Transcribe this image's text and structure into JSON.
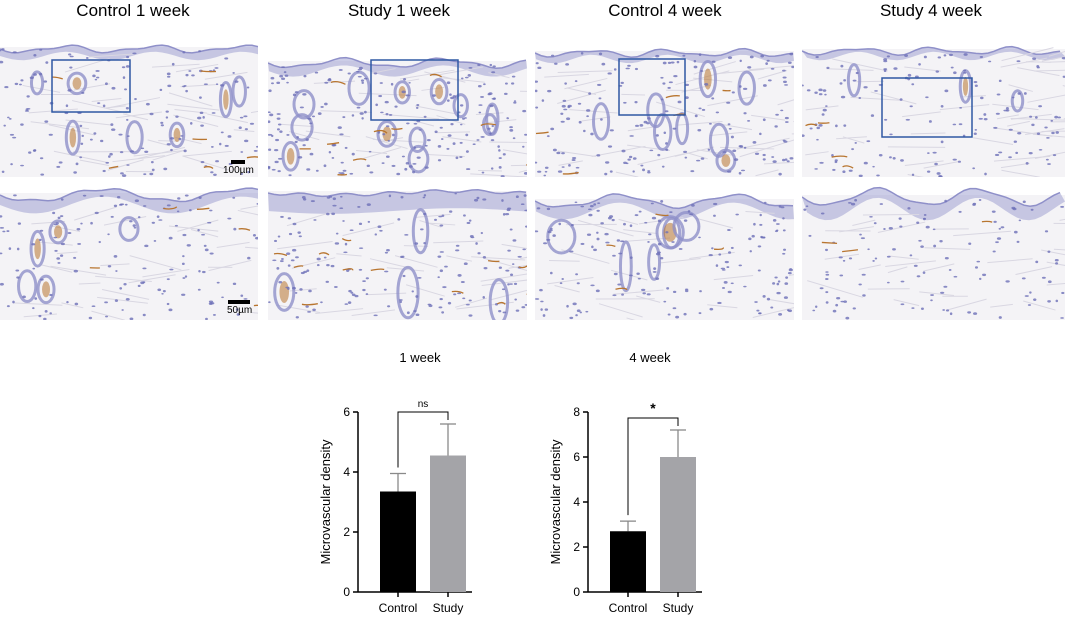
{
  "columns": [
    "Control 1 week",
    "Study 1 week",
    "Control 4 week",
    "Study 4 week"
  ],
  "scale_bars": {
    "top": "100µm",
    "bottom": "50µm"
  },
  "colors": {
    "tissue": "#f4f3f6",
    "nuclei": "#6d6fb8",
    "epidermis": "#8f90c9",
    "stain": "#b8752f",
    "roi_box": "#2f58a4",
    "control_bar": "#000000",
    "study_bar": "#a4a4a8",
    "error_bar": "#8a8a8a"
  },
  "chart_data": [
    {
      "type": "bar",
      "title": "1 week",
      "ylabel": "Microvascular density",
      "categories": [
        "Control",
        "Study"
      ],
      "values": [
        3.35,
        4.55
      ],
      "errors": [
        0.6,
        1.05
      ],
      "ylim": [
        0,
        6
      ],
      "yticks": [
        0,
        2,
        4,
        6
      ],
      "significance": "ns"
    },
    {
      "type": "bar",
      "title": "4 week",
      "ylabel": "Microvascular density",
      "categories": [
        "Control",
        "Study"
      ],
      "values": [
        2.7,
        6.0
      ],
      "errors": [
        0.45,
        1.2
      ],
      "ylim": [
        0,
        8
      ],
      "yticks": [
        0,
        2,
        4,
        6,
        8
      ],
      "significance": "*"
    }
  ]
}
